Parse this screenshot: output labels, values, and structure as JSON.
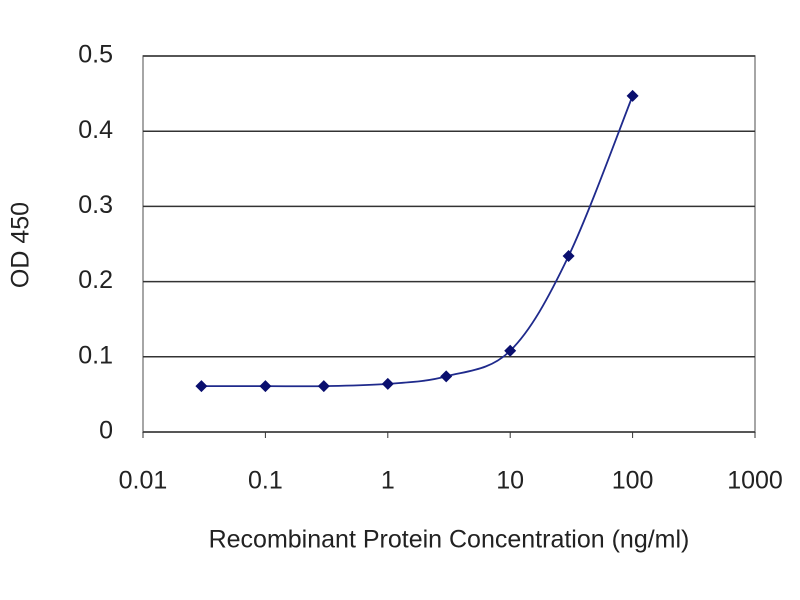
{
  "chart_data": {
    "type": "line",
    "x_label": "Recombinant Protein Concentration (ng/ml)",
    "y_label": "OD 450",
    "x": [
      0.03,
      0.1,
      0.3,
      1,
      3,
      10,
      30,
      100
    ],
    "series": [
      {
        "color": "#1f2a8c",
        "values": [
          0.061,
          0.061,
          0.061,
          0.064,
          0.074,
          0.108,
          0.234,
          0.447
        ]
      }
    ],
    "xlim": [
      0.01,
      1000
    ],
    "xticks": [
      0.01,
      0.1,
      1,
      10,
      100,
      1000
    ],
    "xscale": "log",
    "ylim": [
      0,
      0.5
    ],
    "yticks": [
      0,
      0.1,
      0.2,
      0.3,
      0.4,
      0.5
    ],
    "grid": true
  }
}
